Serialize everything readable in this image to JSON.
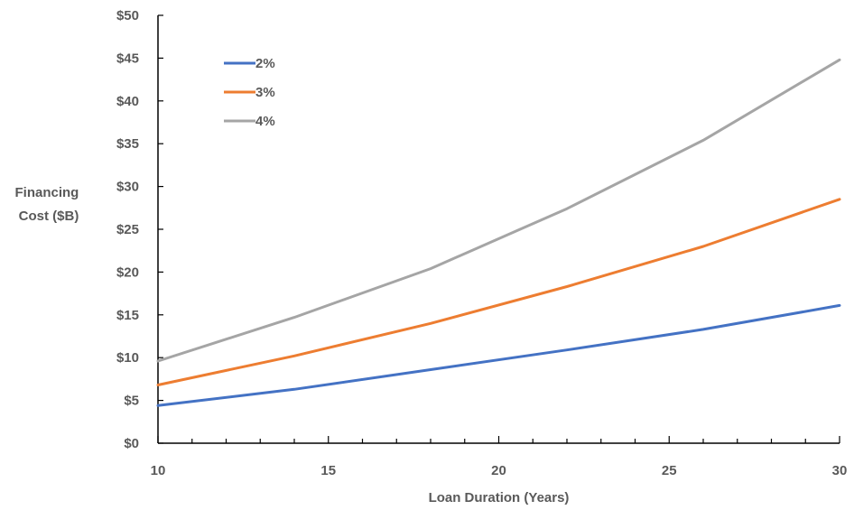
{
  "chart_data": {
    "type": "line",
    "title": "",
    "xlabel": "Loan Duration (Years)",
    "ylabel_lines": [
      "Financing",
      "Cost ($B)"
    ],
    "xlim": [
      10,
      30
    ],
    "ylim": [
      0,
      50
    ],
    "x_ticks": [
      10,
      15,
      20,
      25,
      30
    ],
    "x_tick_labels": [
      "10",
      "15",
      "20",
      "25",
      "30"
    ],
    "y_ticks": [
      0,
      5,
      10,
      15,
      20,
      25,
      30,
      35,
      40,
      45,
      50
    ],
    "y_tick_labels": [
      "$0",
      "$5",
      "$10",
      "$15",
      "$20",
      "$25",
      "$30",
      "$35",
      "$40",
      "$45",
      "$50"
    ],
    "grid": false,
    "legend_position": "top-left",
    "series": [
      {
        "name": "2%",
        "color": "#4472C4",
        "x": [
          10,
          14,
          18,
          22,
          26,
          30
        ],
        "y": [
          4.4,
          6.3,
          8.6,
          10.9,
          13.3,
          16.1
        ]
      },
      {
        "name": "3%",
        "color": "#ED7D31",
        "x": [
          10,
          14,
          18,
          22,
          26,
          30
        ],
        "y": [
          6.8,
          10.2,
          14.0,
          18.3,
          23.0,
          28.5
        ]
      },
      {
        "name": "4%",
        "color": "#A5A5A5",
        "x": [
          10,
          14,
          18,
          22,
          26,
          30
        ],
        "y": [
          9.6,
          14.7,
          20.4,
          27.4,
          35.4,
          44.8
        ]
      }
    ]
  }
}
